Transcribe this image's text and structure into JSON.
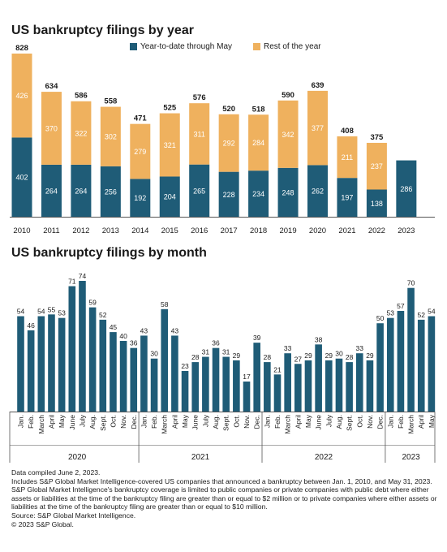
{
  "colors": {
    "ytd": "#1f5c77",
    "rest": "#efb15e",
    "axis": "#555555",
    "label_light": "#ffffff",
    "label_dark": "#1a1a1a"
  },
  "legend": {
    "ytd_label": "Year-to-date through May",
    "rest_label": "Rest of the year"
  },
  "chart_data": [
    {
      "type": "bar",
      "stacked": true,
      "title": "US bankruptcy filings by year",
      "categories": [
        "2010",
        "2011",
        "2012",
        "2013",
        "2014",
        "2015",
        "2016",
        "2017",
        "2018",
        "2019",
        "2020",
        "2021",
        "2022",
        "2023"
      ],
      "totals": [
        "828",
        "634",
        "586",
        "558",
        "471",
        "525",
        "576",
        "520",
        "518",
        "590",
        "639",
        "408",
        "375",
        ""
      ],
      "series": [
        {
          "name": "Year-to-date through May",
          "values": [
            402,
            264,
            264,
            256,
            192,
            204,
            265,
            228,
            234,
            248,
            262,
            197,
            138,
            286
          ]
        },
        {
          "name": "Rest of the year",
          "values": [
            426,
            370,
            322,
            302,
            279,
            321,
            311,
            292,
            284,
            342,
            377,
            211,
            237,
            0
          ]
        }
      ],
      "ylim": [
        0,
        828
      ],
      "legend_position": "top-right"
    },
    {
      "type": "bar",
      "title": "US bankruptcy filings by month",
      "categories": [
        "Jan.",
        "Feb.",
        "March",
        "April",
        "May",
        "June",
        "July",
        "Aug.",
        "Sept.",
        "Oct.",
        "Nov.",
        "Dec.",
        "Jan.",
        "Feb.",
        "March",
        "April",
        "May",
        "June",
        "July",
        "Aug.",
        "Sept.",
        "Oct.",
        "Nov.",
        "Dec.",
        "Jan.",
        "Feb.",
        "March",
        "April",
        "May",
        "June",
        "July",
        "Aug.",
        "Sept.",
        "Oct.",
        "Nov.",
        "Dec.",
        "Jan.",
        "Feb.",
        "March",
        "April",
        "May"
      ],
      "values": [
        54,
        46,
        54,
        55,
        53,
        71,
        74,
        59,
        52,
        45,
        40,
        36,
        43,
        30,
        58,
        43,
        23,
        28,
        31,
        36,
        31,
        29,
        17,
        39,
        28,
        21,
        33,
        27,
        29,
        38,
        29,
        30,
        28,
        33,
        29,
        50,
        53,
        57,
        70,
        52,
        54
      ],
      "year_groups": [
        {
          "label": "2020",
          "count": 12
        },
        {
          "label": "2021",
          "count": 12
        },
        {
          "label": "2022",
          "count": 12
        },
        {
          "label": "2023",
          "count": 5
        }
      ],
      "ylim": [
        0,
        74
      ]
    }
  ],
  "footnotes": [
    "Data compiled June 2, 2023.",
    "Includes S&P Global Market Intelligence-covered US companies that announced a bankruptcy between Jan. 1, 2010, and May 31, 2023.",
    "S&P Global Market Intelligence's bankruptcy coverage is limited to public companies or private companies with public debt where either assets or liabilities at the time of the bankruptcy filing are greater than or equal to $2 million or to private companies where either assets or liabilities at the time of the bankruptcy filing are greater than or equal to $10 million.",
    "Source: S&P Global Market Intelligence.",
    "© 2023 S&P Global."
  ]
}
